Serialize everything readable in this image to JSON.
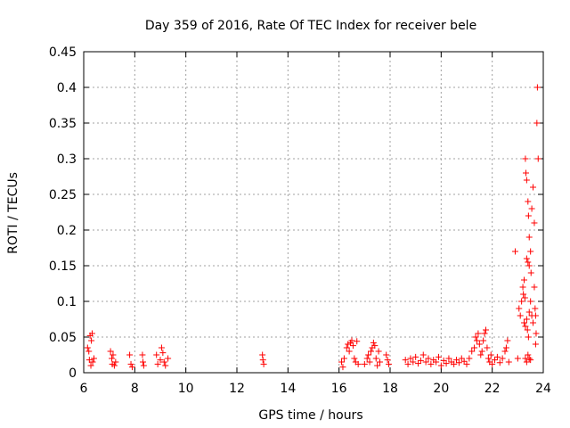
{
  "chart_data": {
    "type": "scatter",
    "title": "Day 359 of 2016, Rate Of TEC Index for receiver bele",
    "xlabel": "GPS time / hours",
    "ylabel": "ROTI / TECUs",
    "xlim": [
      6,
      24
    ],
    "ylim": [
      0,
      0.45
    ],
    "xticks": [
      6,
      8,
      10,
      12,
      14,
      16,
      18,
      20,
      22,
      24
    ],
    "xtick_labels": [
      "6",
      "8",
      "10",
      "12",
      "14",
      "16",
      "18",
      "20",
      "22",
      "24"
    ],
    "yticks": [
      0,
      0.05,
      0.1,
      0.15,
      0.2,
      0.25,
      0.3,
      0.35,
      0.4,
      0.45
    ],
    "ytick_labels": [
      "0",
      "0.05",
      "0.1",
      "0.15",
      "0.2",
      "0.25",
      "0.3",
      "0.35",
      "0.4",
      "0.45"
    ],
    "grid": true,
    "marker": "+",
    "color": "#ff0000",
    "series": [
      {
        "points": [
          [
            6.15,
            0.035
          ],
          [
            6.2,
            0.03
          ],
          [
            6.22,
            0.018
          ],
          [
            6.25,
            0.052
          ],
          [
            6.3,
            0.045
          ],
          [
            6.33,
            0.055
          ],
          [
            6.35,
            0.015
          ],
          [
            6.4,
            0.02
          ],
          [
            6.28,
            0.01
          ],
          [
            7.05,
            0.03
          ],
          [
            7.1,
            0.02
          ],
          [
            7.12,
            0.012
          ],
          [
            7.15,
            0.025
          ],
          [
            7.2,
            0.01
          ],
          [
            7.25,
            0.015
          ],
          [
            7.8,
            0.025
          ],
          [
            7.85,
            0.012
          ],
          [
            7.9,
            0.008
          ],
          [
            8.3,
            0.025
          ],
          [
            8.32,
            0.015
          ],
          [
            8.35,
            0.01
          ],
          [
            8.85,
            0.025
          ],
          [
            8.9,
            0.012
          ],
          [
            9.0,
            0.018
          ],
          [
            9.05,
            0.035
          ],
          [
            9.1,
            0.028
          ],
          [
            9.15,
            0.015
          ],
          [
            9.2,
            0.01
          ],
          [
            9.3,
            0.02
          ],
          [
            13.0,
            0.025
          ],
          [
            13.02,
            0.018
          ],
          [
            13.05,
            0.012
          ],
          [
            16.1,
            0.015
          ],
          [
            16.15,
            0.008
          ],
          [
            16.2,
            0.02
          ],
          [
            16.3,
            0.035
          ],
          [
            16.35,
            0.04
          ],
          [
            16.4,
            0.03
          ],
          [
            16.45,
            0.042
          ],
          [
            16.5,
            0.045
          ],
          [
            16.55,
            0.038
          ],
          [
            16.6,
            0.02
          ],
          [
            16.65,
            0.015
          ],
          [
            16.7,
            0.044
          ],
          [
            16.75,
            0.012
          ],
          [
            17.0,
            0.012
          ],
          [
            17.1,
            0.02
          ],
          [
            17.15,
            0.025
          ],
          [
            17.2,
            0.015
          ],
          [
            17.25,
            0.03
          ],
          [
            17.3,
            0.035
          ],
          [
            17.35,
            0.042
          ],
          [
            17.4,
            0.038
          ],
          [
            17.45,
            0.02
          ],
          [
            17.5,
            0.01
          ],
          [
            17.55,
            0.03
          ],
          [
            17.6,
            0.015
          ],
          [
            17.85,
            0.025
          ],
          [
            17.9,
            0.018
          ],
          [
            17.95,
            0.012
          ],
          [
            18.6,
            0.018
          ],
          [
            18.7,
            0.012
          ],
          [
            18.8,
            0.02
          ],
          [
            18.9,
            0.015
          ],
          [
            19.0,
            0.022
          ],
          [
            19.1,
            0.013
          ],
          [
            19.2,
            0.017
          ],
          [
            19.3,
            0.025
          ],
          [
            19.4,
            0.015
          ],
          [
            19.5,
            0.02
          ],
          [
            19.6,
            0.012
          ],
          [
            19.7,
            0.018
          ],
          [
            19.8,
            0.015
          ],
          [
            19.9,
            0.022
          ],
          [
            20.0,
            0.01
          ],
          [
            20.1,
            0.017
          ],
          [
            20.2,
            0.013
          ],
          [
            20.3,
            0.02
          ],
          [
            20.4,
            0.015
          ],
          [
            20.5,
            0.012
          ],
          [
            20.6,
            0.018
          ],
          [
            20.7,
            0.014
          ],
          [
            20.8,
            0.02
          ],
          [
            20.9,
            0.016
          ],
          [
            21.0,
            0.012
          ],
          [
            21.1,
            0.02
          ],
          [
            21.2,
            0.03
          ],
          [
            21.3,
            0.035
          ],
          [
            21.35,
            0.05
          ],
          [
            21.4,
            0.045
          ],
          [
            21.45,
            0.055
          ],
          [
            21.5,
            0.04
          ],
          [
            21.55,
            0.025
          ],
          [
            21.6,
            0.03
          ],
          [
            21.65,
            0.045
          ],
          [
            21.7,
            0.055
          ],
          [
            21.75,
            0.06
          ],
          [
            21.8,
            0.035
          ],
          [
            21.85,
            0.02
          ],
          [
            21.9,
            0.015
          ],
          [
            21.95,
            0.025
          ],
          [
            22.0,
            0.012
          ],
          [
            22.1,
            0.018
          ],
          [
            22.2,
            0.022
          ],
          [
            22.3,
            0.014
          ],
          [
            22.4,
            0.02
          ],
          [
            22.5,
            0.03
          ],
          [
            22.55,
            0.035
          ],
          [
            22.6,
            0.045
          ],
          [
            22.65,
            0.015
          ],
          [
            22.9,
            0.17
          ],
          [
            23.0,
            0.02
          ],
          [
            23.05,
            0.09
          ],
          [
            23.1,
            0.08
          ],
          [
            23.15,
            0.1
          ],
          [
            23.2,
            0.12
          ],
          [
            23.22,
            0.11
          ],
          [
            23.25,
            0.13
          ],
          [
            23.3,
            0.3
          ],
          [
            23.32,
            0.28
          ],
          [
            23.35,
            0.27
          ],
          [
            23.4,
            0.24
          ],
          [
            23.42,
            0.22
          ],
          [
            23.45,
            0.19
          ],
          [
            23.5,
            0.17
          ],
          [
            23.55,
            0.23
          ],
          [
            23.6,
            0.26
          ],
          [
            23.65,
            0.21
          ],
          [
            23.7,
            0.04
          ],
          [
            23.72,
            0.055
          ],
          [
            23.75,
            0.35
          ],
          [
            23.77,
            0.4
          ],
          [
            23.8,
            0.3
          ],
          [
            23.35,
            0.075
          ],
          [
            23.38,
            0.06
          ],
          [
            23.42,
            0.05
          ],
          [
            23.45,
            0.085
          ],
          [
            23.3,
            0.065
          ],
          [
            23.25,
            0.07
          ],
          [
            23.28,
            0.105
          ],
          [
            23.5,
            0.1
          ],
          [
            23.52,
            0.14
          ],
          [
            23.55,
            0.08
          ],
          [
            23.6,
            0.07
          ],
          [
            23.65,
            0.12
          ],
          [
            23.68,
            0.09
          ],
          [
            23.7,
            0.08
          ],
          [
            23.35,
            0.16
          ],
          [
            23.4,
            0.155
          ],
          [
            23.45,
            0.15
          ],
          [
            23.3,
            0.02
          ],
          [
            23.35,
            0.015
          ],
          [
            23.4,
            0.025
          ],
          [
            23.45,
            0.02
          ],
          [
            23.5,
            0.018
          ]
        ]
      }
    ]
  }
}
